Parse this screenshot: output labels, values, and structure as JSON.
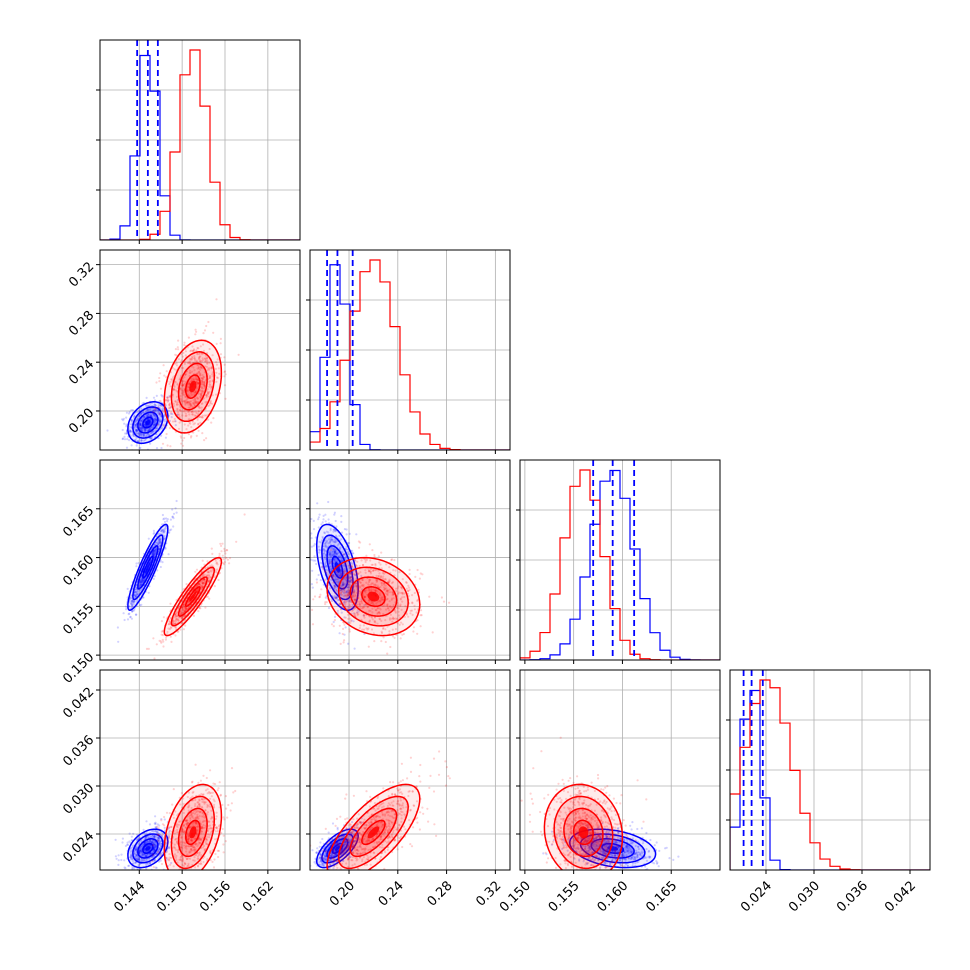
{
  "chart_data": {
    "type": "corner",
    "title": "",
    "parameters": [
      {
        "index": 0,
        "range": [
          0.1385,
          0.1665
        ],
        "ticks": [
          0.144,
          0.15,
          0.156,
          0.162
        ],
        "tick_labels": [
          "0.144",
          "0.150",
          "0.156",
          "0.162"
        ]
      },
      {
        "index": 1,
        "range": [
          0.168,
          0.332
        ],
        "ticks": [
          0.2,
          0.24,
          0.28,
          0.32
        ],
        "tick_labels": [
          "0.20",
          "0.24",
          "0.28",
          "0.32"
        ]
      },
      {
        "index": 2,
        "range": [
          0.1495,
          0.17
        ],
        "ticks": [
          0.15,
          0.155,
          0.16,
          0.165
        ],
        "tick_labels": [
          "0.150",
          "0.155",
          "0.160",
          "0.165"
        ]
      },
      {
        "index": 3,
        "range": [
          0.0195,
          0.0445
        ],
        "ticks": [
          0.024,
          0.03,
          0.036,
          0.042
        ],
        "tick_labels": [
          "0.024",
          "0.030",
          "0.036",
          "0.042"
        ]
      }
    ],
    "series": [
      {
        "color": "#0000ff",
        "means": [
          0.1452,
          0.1905,
          0.159,
          0.0222
        ],
        "sigmas": [
          0.0014,
          0.0085,
          0.0022,
          0.0012
        ],
        "quantiles": [
          [
            0.1437,
            0.1452,
            0.1466
          ],
          [
            0.182,
            0.1905,
            0.203
          ],
          [
            0.157,
            0.159,
            0.1612
          ],
          [
            0.0212,
            0.0222,
            0.0236
          ]
        ],
        "correlations": {
          "1-0": 0.3,
          "2-0": 0.9,
          "2-1": -0.5,
          "3-0": 0.35,
          "3-1": 0.65,
          "3-2": -0.3
        }
      },
      {
        "color": "#ff0000",
        "means": [
          0.1515,
          0.22,
          0.156,
          0.0242
        ],
        "sigmas": [
          0.002,
          0.019,
          0.002,
          0.003
        ],
        "correlations": {
          "1-0": 0.3,
          "2-0": 0.9,
          "2-1": -0.2,
          "3-0": 0.35,
          "3-1": 0.7,
          "3-2": -0.1
        }
      }
    ],
    "quantile_lines": {
      "series": 0,
      "style": "dashed"
    },
    "grid": true
  }
}
